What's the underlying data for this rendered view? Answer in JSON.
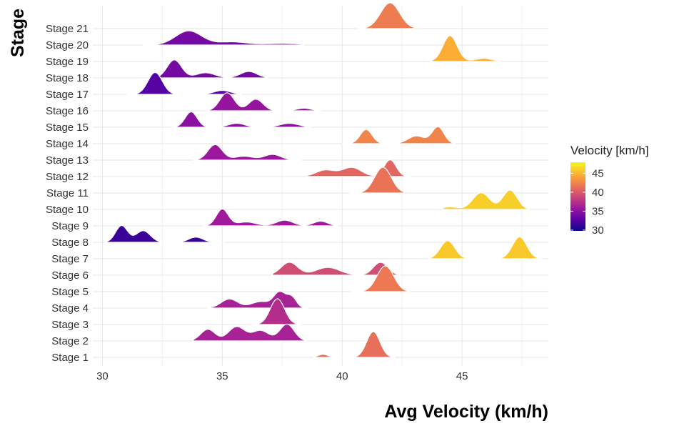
{
  "chart_data": {
    "type": "ridgeline",
    "xlabel": "Avg Velocity (km/h)",
    "ylabel": "Stage",
    "xlim": [
      29.6,
      48.6
    ],
    "x_ticks": [
      30,
      35,
      40,
      45
    ],
    "grid": true,
    "legend": {
      "title": "Velocity [km/h]",
      "position": "right",
      "ticks": [
        30,
        35,
        40,
        45
      ],
      "range": [
        29.8,
        47.9
      ],
      "colors": [
        "#0d0887",
        "#5c01a6",
        "#9c179e",
        "#cc4778",
        "#ed7953",
        "#fdb42f",
        "#f0f921"
      ]
    },
    "stages": [
      {
        "name": "Stage 1",
        "value": 41.3,
        "peaks": [
          [
            39.2,
            0.12,
            0.2
          ],
          [
            41.3,
            1.0,
            0.28
          ]
        ],
        "range": [
          38.8,
          42.2
        ]
      },
      {
        "name": "Stage 2",
        "value": 36.5,
        "peaks": [
          [
            34.4,
            0.45,
            0.3
          ],
          [
            35.6,
            0.55,
            0.35
          ],
          [
            36.6,
            0.4,
            0.35
          ],
          [
            37.7,
            0.65,
            0.3
          ]
        ],
        "range": [
          33.8,
          38.5
        ]
      },
      {
        "name": "Stage 3",
        "value": 37.3,
        "peaks": [
          [
            37.3,
            1.0,
            0.3
          ]
        ],
        "range": [
          36.2,
          38.3
        ]
      },
      {
        "name": "Stage 4",
        "value": 36.5,
        "peaks": [
          [
            35.3,
            0.35,
            0.35
          ],
          [
            36.6,
            0.25,
            0.4
          ],
          [
            37.4,
            0.6,
            0.25
          ],
          [
            37.9,
            0.4,
            0.2
          ]
        ],
        "range": [
          34.4,
          38.6
        ]
      },
      {
        "name": "Stage 5",
        "value": 41.8,
        "peaks": [
          [
            41.8,
            1.0,
            0.35
          ]
        ],
        "range": [
          40.4,
          42.8
        ]
      },
      {
        "name": "Stage 6",
        "value": 39.2,
        "peaks": [
          [
            37.8,
            0.5,
            0.35
          ],
          [
            39.4,
            0.3,
            0.5
          ],
          [
            41.6,
            0.5,
            0.3
          ]
        ],
        "range": [
          37.1,
          42.4
        ]
      },
      {
        "name": "Stage 7",
        "value": 45.8,
        "peaks": [
          [
            44.4,
            0.7,
            0.3
          ],
          [
            47.4,
            0.85,
            0.3
          ]
        ],
        "range": [
          43.6,
          48.3
        ]
      },
      {
        "name": "Stage 8",
        "value": 31.5,
        "peaks": [
          [
            30.8,
            0.65,
            0.25
          ],
          [
            31.7,
            0.45,
            0.3
          ],
          [
            33.9,
            0.2,
            0.3
          ]
        ],
        "range": [
          30.1,
          35.1
        ]
      },
      {
        "name": "Stage 9",
        "value": 36.0,
        "peaks": [
          [
            35.0,
            0.65,
            0.25
          ],
          [
            36.0,
            0.15,
            0.4
          ],
          [
            37.6,
            0.22,
            0.35
          ],
          [
            39.1,
            0.18,
            0.3
          ]
        ],
        "range": [
          34.2,
          39.8
        ]
      },
      {
        "name": "Stage 10",
        "value": 46.0,
        "peaks": [
          [
            44.5,
            0.1,
            0.3
          ],
          [
            45.8,
            0.65,
            0.35
          ],
          [
            47.0,
            0.75,
            0.3
          ]
        ],
        "range": [
          44.2,
          47.8
        ]
      },
      {
        "name": "Stage 11",
        "value": 41.5,
        "peaks": [
          [
            41.7,
            1.0,
            0.35
          ]
        ],
        "range": [
          40.3,
          42.6
        ]
      },
      {
        "name": "Stage 12",
        "value": 40.8,
        "peaks": [
          [
            39.3,
            0.25,
            0.4
          ],
          [
            40.4,
            0.35,
            0.4
          ],
          [
            42.0,
            0.65,
            0.25
          ]
        ],
        "range": [
          38.5,
          42.9
        ]
      },
      {
        "name": "Stage 13",
        "value": 35.8,
        "peaks": [
          [
            34.7,
            0.6,
            0.3
          ],
          [
            35.9,
            0.15,
            0.4
          ],
          [
            37.1,
            0.22,
            0.35
          ]
        ],
        "range": [
          33.8,
          38.3
        ]
      },
      {
        "name": "Stage 14",
        "value": 42.5,
        "peaks": [
          [
            41.0,
            0.55,
            0.25
          ],
          [
            43.1,
            0.3,
            0.35
          ],
          [
            44.0,
            0.65,
            0.25
          ]
        ],
        "range": [
          40.0,
          44.7
        ]
      },
      {
        "name": "Stage 15",
        "value": 35.0,
        "peaks": [
          [
            33.7,
            0.6,
            0.25
          ],
          [
            35.6,
            0.15,
            0.35
          ],
          [
            37.8,
            0.15,
            0.4
          ]
        ],
        "range": [
          32.9,
          38.7
        ]
      },
      {
        "name": "Stage 16",
        "value": 35.5,
        "peaks": [
          [
            35.2,
            0.7,
            0.3
          ],
          [
            36.4,
            0.45,
            0.3
          ],
          [
            38.4,
            0.1,
            0.3
          ]
        ],
        "range": [
          34.3,
          39.1
        ]
      },
      {
        "name": "Stage 17",
        "value": 32.5,
        "peaks": [
          [
            32.2,
            0.85,
            0.3
          ],
          [
            35.0,
            0.15,
            0.35
          ]
        ],
        "range": [
          31.0,
          35.8
        ]
      },
      {
        "name": "Stage 18",
        "value": 34.0,
        "peaks": [
          [
            33.0,
            0.7,
            0.3
          ],
          [
            34.3,
            0.2,
            0.4
          ],
          [
            36.1,
            0.25,
            0.35
          ]
        ],
        "range": [
          32.2,
          36.9
        ]
      },
      {
        "name": "Stage 19",
        "value": 44.5,
        "peaks": [
          [
            44.5,
            1.0,
            0.3
          ],
          [
            45.9,
            0.12,
            0.35
          ]
        ],
        "range": [
          43.7,
          46.6
        ]
      },
      {
        "name": "Stage 20",
        "value": 34.0,
        "peaks": [
          [
            33.6,
            0.55,
            0.55
          ],
          [
            35.4,
            0.12,
            0.6
          ],
          [
            37.5,
            0.06,
            0.8
          ]
        ],
        "range": [
          31.7,
          38.4
        ]
      },
      {
        "name": "Stage 21",
        "value": 42.0,
        "peaks": [
          [
            42.0,
            1.0,
            0.4
          ]
        ],
        "range": [
          40.7,
          43.0
        ]
      }
    ]
  }
}
